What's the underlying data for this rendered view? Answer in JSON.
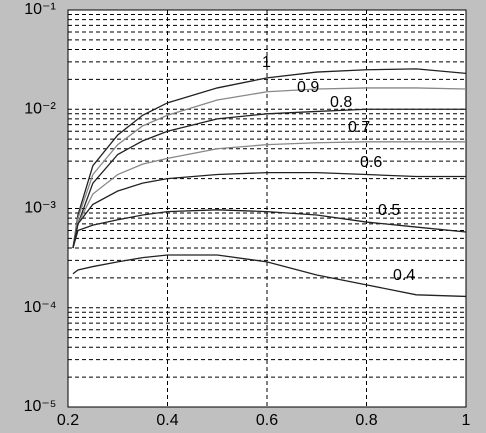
{
  "chart_data": {
    "type": "line",
    "log_y": true,
    "grid": true,
    "x": [
      0.21,
      0.22,
      0.25,
      0.3,
      0.35,
      0.4,
      0.5,
      0.6,
      0.7,
      0.8,
      0.9,
      1
    ],
    "xlim": [
      0.2,
      1
    ],
    "xticks": [
      0.2,
      0.4,
      0.6,
      0.8,
      1
    ],
    "ylim": [
      1e-05,
      0.1
    ],
    "yticks": [
      {
        "value": 1e-05,
        "label": "10⁻⁵"
      },
      {
        "value": 0.0001,
        "label": "10⁻⁴"
      },
      {
        "value": 0.001,
        "label": "10⁻³"
      },
      {
        "value": 0.01,
        "label": "10⁻²"
      },
      {
        "value": 0.1,
        "label": "10⁻¹"
      }
    ],
    "yminorticks": [
      2e-05,
      3e-05,
      4e-05,
      5e-05,
      6e-05,
      7e-05,
      8e-05,
      9e-05,
      0.0002,
      0.0003,
      0.0004,
      0.0005,
      0.0006,
      0.0007,
      0.0008,
      0.0009,
      0.002,
      0.003,
      0.004,
      0.005,
      0.006,
      0.007,
      0.008,
      0.009,
      0.02,
      0.03,
      0.04,
      0.05,
      0.06,
      0.07,
      0.08,
      0.09
    ],
    "series": [
      {
        "name": "1",
        "color": "#222222",
        "values": [
          0.0004,
          0.00086,
          0.0027,
          0.0055,
          0.0087,
          0.0116,
          0.0164,
          0.0207,
          0.0237,
          0.025,
          0.0255,
          0.023
        ]
      },
      {
        "name": "0.9",
        "color": "#888888",
        "values": [
          0.0004,
          0.0008,
          0.0022,
          0.0044,
          0.0068,
          0.0087,
          0.0124,
          0.015,
          0.016,
          0.0164,
          0.0164,
          0.016
        ]
      },
      {
        "name": "0.8",
        "color": "#222222",
        "values": [
          0.0004,
          0.0007,
          0.0018,
          0.0035,
          0.0048,
          0.006,
          0.008,
          0.009,
          0.0095,
          0.01,
          0.01,
          0.01
        ]
      },
      {
        "name": "0.7",
        "color": "#888888",
        "values": [
          0.0004,
          0.0007,
          0.0014,
          0.0022,
          0.0028,
          0.0032,
          0.004,
          0.0044,
          0.0046,
          0.0047,
          0.0047,
          0.0047
        ]
      },
      {
        "name": "0.6",
        "color": "#222222",
        "values": [
          0.0004,
          0.0007,
          0.0011,
          0.0015,
          0.0018,
          0.002,
          0.0022,
          0.0023,
          0.0023,
          0.0022,
          0.0021,
          0.0021
        ]
      },
      {
        "name": "0.5",
        "color": "#222222",
        "values": [
          0.0004,
          0.0006,
          0.00068,
          0.00077,
          0.00086,
          0.00093,
          0.00097,
          0.00093,
          0.00086,
          0.00073,
          0.00065,
          0.00058
        ]
      },
      {
        "name": "0.4",
        "color": "#222222",
        "values": [
          0.00022,
          0.00024,
          0.00026,
          0.00029,
          0.00032,
          0.00034,
          0.00034,
          0.00029,
          0.000214,
          0.00017,
          0.000135,
          0.00013
        ]
      }
    ]
  }
}
